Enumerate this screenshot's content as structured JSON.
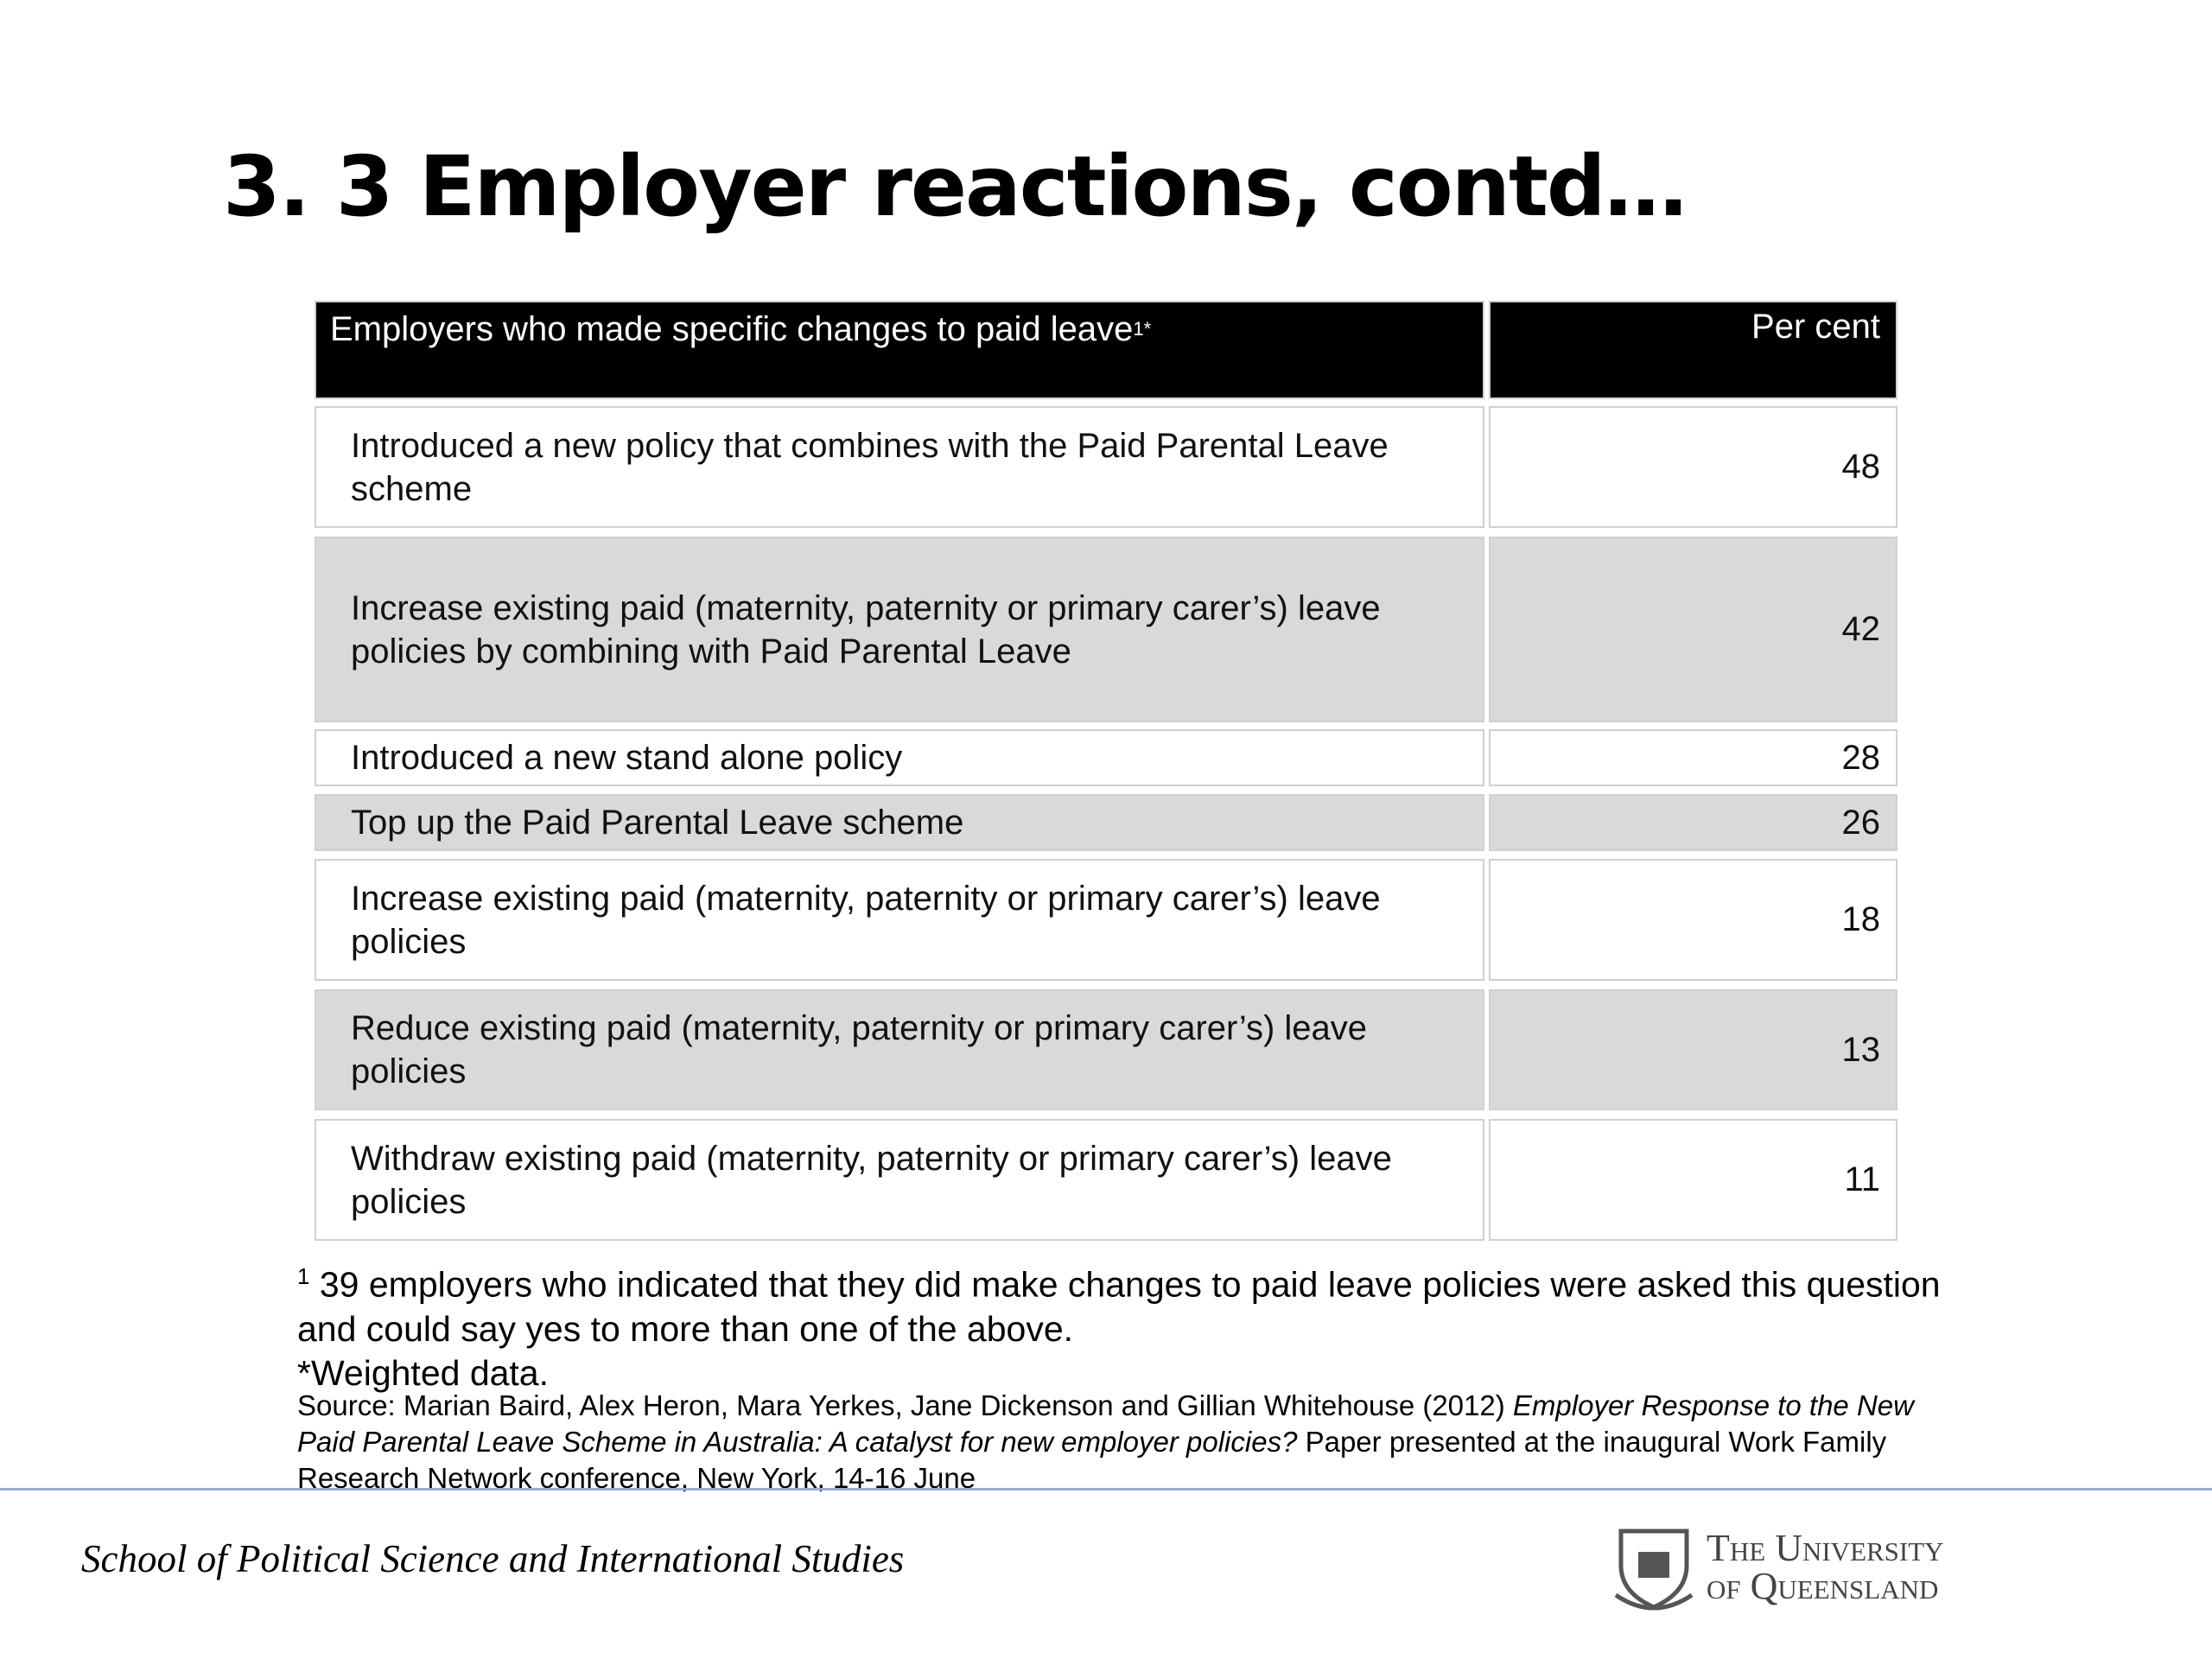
{
  "slide": {
    "title": "3. 3 Employer reactions, contd…"
  },
  "table": {
    "header": {
      "label": "Employers who made specific changes to paid leave",
      "label_sup": "1*",
      "value": "Per cent"
    },
    "rows": [
      {
        "label": "Introduced a new policy that combines with the Paid Parental Leave scheme",
        "value": 48
      },
      {
        "label": "Increase existing paid (maternity, paternity or primary carer’s) leave policies by combining with Paid Parental Leave",
        "value": 42
      },
      {
        "label": "Introduced a new stand alone policy",
        "value": 28
      },
      {
        "label": "Top up the Paid Parental Leave scheme",
        "value": 26
      },
      {
        "label": "Increase existing paid (maternity, paternity or primary carer’s) leave policies",
        "value": 18
      },
      {
        "label": "Reduce existing paid (maternity, paternity or primary carer’s) leave policies",
        "value": 13
      },
      {
        "label": "Withdraw existing paid (maternity, paternity or primary carer’s) leave policies",
        "value": 11
      }
    ]
  },
  "notes": {
    "footnote_mark": "1",
    "footnote": "39 employers who indicated that they did make changes to paid leave policies were asked this question and could say yes to more than one of the above.",
    "weighted": "*Weighted data.",
    "source_pre": "Source: Marian Baird, Alex Heron, Mara Yerkes, Jane Dickenson and Gillian Whitehouse (2012)",
    "source_title": "Employer Response to the New Paid Parental Leave Scheme in Australia: A catalyst for new employer policies?",
    "source_post": "Paper presented at the inaugural Work Family Research Network conference, New York, 14-16 June"
  },
  "footer": {
    "school": "School of Political Science and International Studies",
    "university_line1": "The University",
    "university_line2": "of Queensland"
  }
}
